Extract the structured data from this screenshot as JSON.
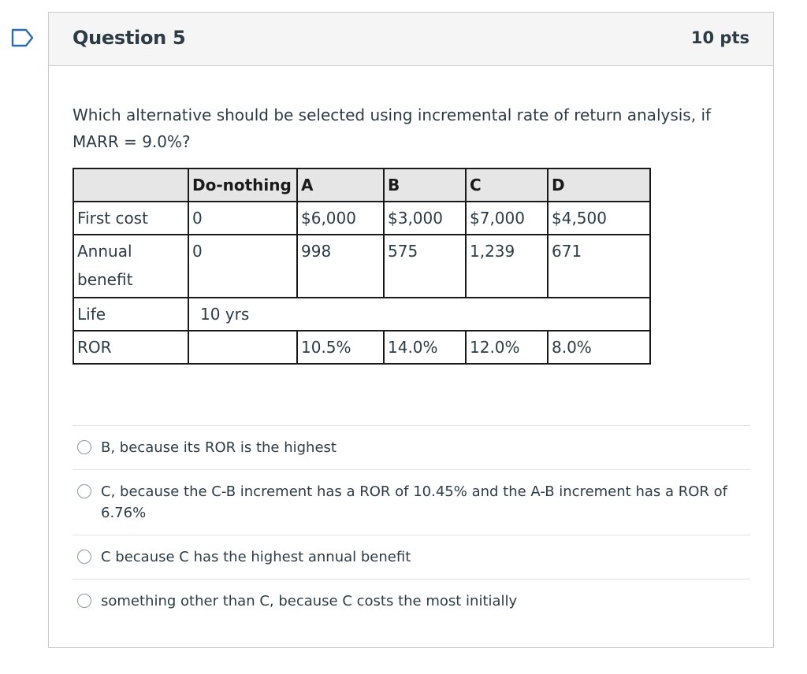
{
  "question": {
    "title": "Question 5",
    "points": "10 pts",
    "prompt_line1": "Which alternative should be selected using incremental rate of return analysis, if",
    "prompt_line2": "MARR = 9.0%?"
  },
  "table": {
    "header": [
      "",
      "Do-nothing",
      "A",
      "B",
      "C",
      "D"
    ],
    "first_cost": [
      "First cost",
      "0",
      "$6,000",
      "$3,000",
      "$7,000",
      "$4,500"
    ],
    "annual_benefit": [
      "Annual benefit",
      "0",
      "998",
      "575",
      "1,239",
      "671"
    ],
    "life": [
      "Life",
      "10 yrs"
    ],
    "ror": [
      "ROR",
      "",
      "10.5%",
      "14.0%",
      "12.0%",
      "8.0%"
    ]
  },
  "answers": [
    "B, because its ROR is the highest",
    "C, because the C-B increment has a ROR of 10.45% and the A-B increment has a ROR of 6.76%",
    "C because C has the highest annual benefit",
    "something other than C, because C costs the most initially"
  ],
  "colors": {
    "text": "#2d3b45",
    "header_bg": "#f5f5f5",
    "border": "#c7cdd1",
    "table_header_bg": "#e6e6e6"
  },
  "icons": {
    "flag": "bookmark-flag-icon",
    "radio": "radio-icon"
  }
}
